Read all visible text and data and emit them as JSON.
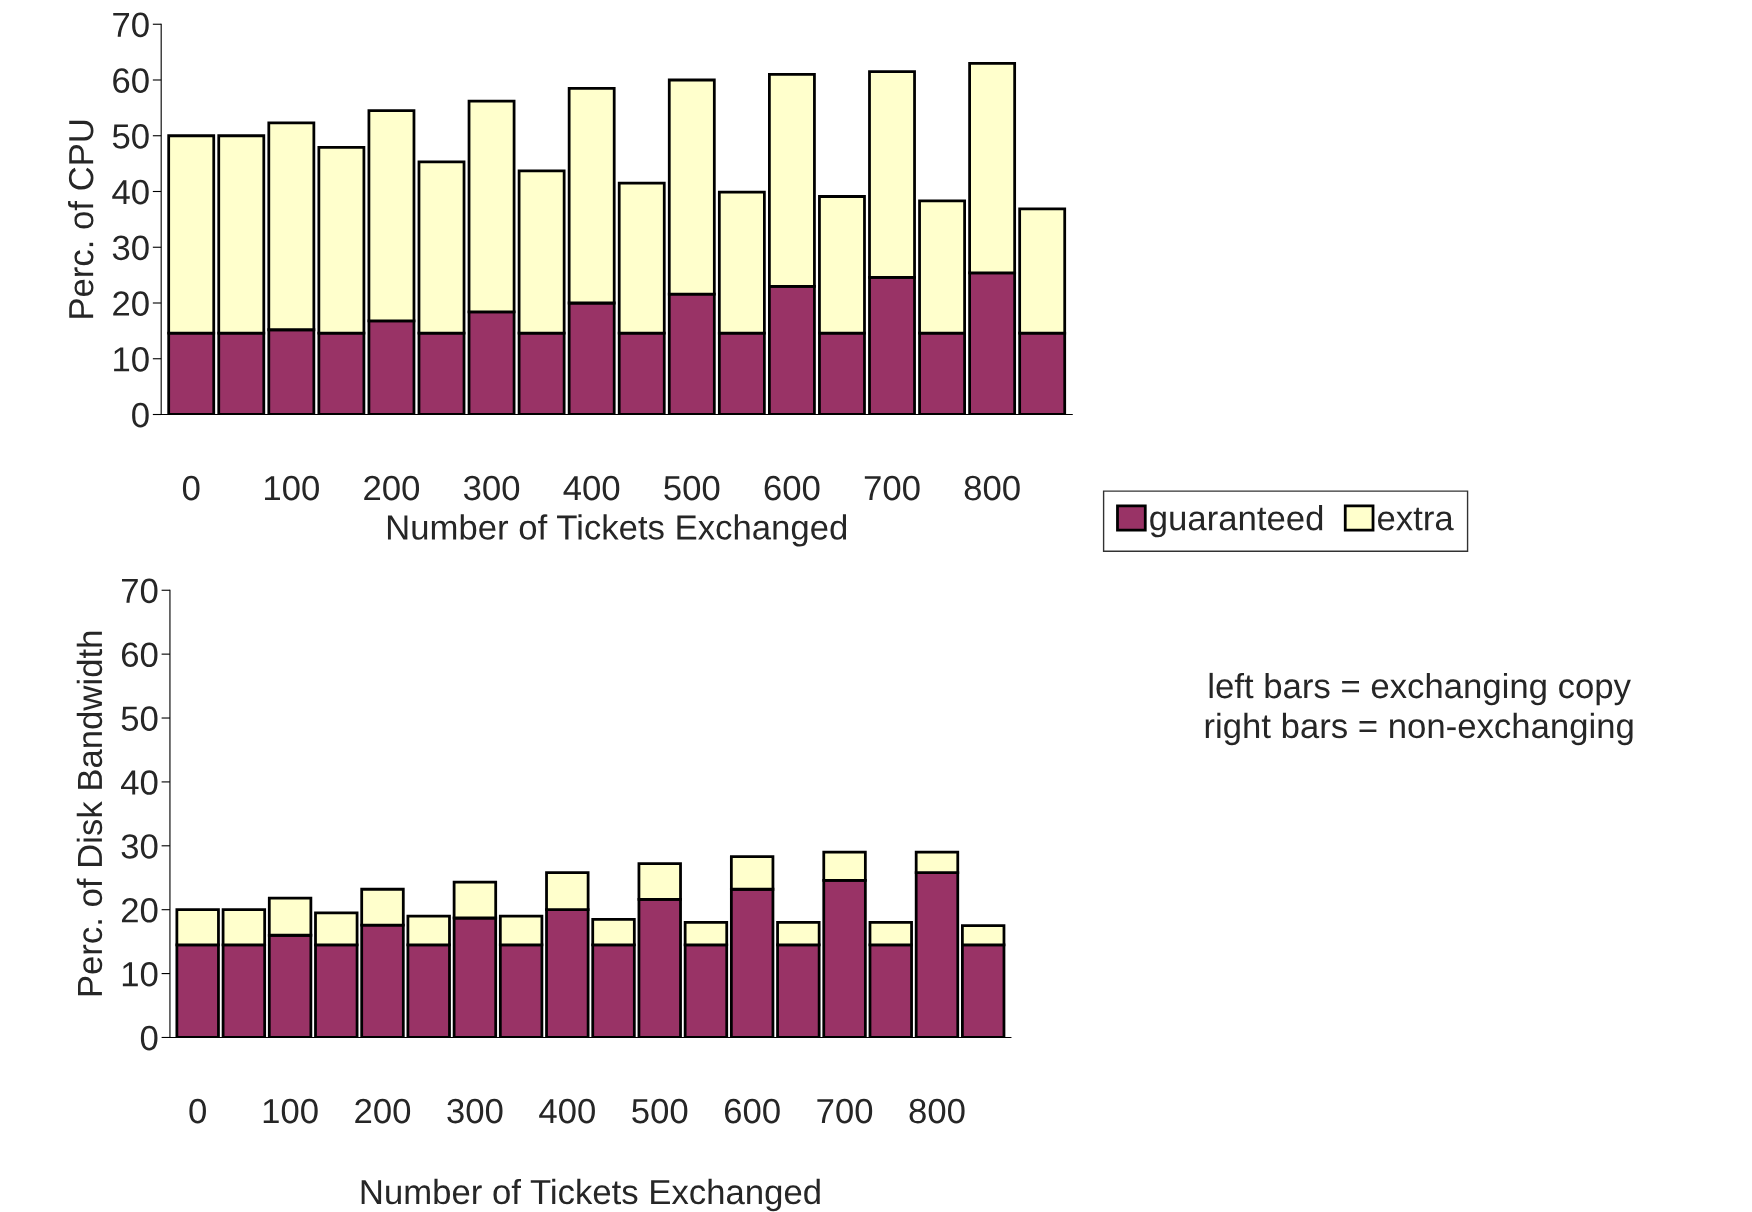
{
  "chart_data": [
    {
      "type": "bar",
      "stacked": true,
      "ylabel": "Perc. of CPU",
      "xlabel": "Number of Tickets Exchanged",
      "categories": [
        "0",
        null,
        "100",
        null,
        "200",
        null,
        "300",
        null,
        "400",
        null,
        "500",
        null,
        "600",
        null,
        "700",
        null,
        "800",
        null
      ],
      "ylim": [
        0,
        70
      ],
      "yticks": [
        0,
        10,
        20,
        30,
        40,
        50,
        60,
        70
      ],
      "legend": "right",
      "series": [
        {
          "name": "guaranteed",
          "color": "#993366",
          "values": [
            14.6,
            14.6,
            15.2,
            14.6,
            16.8,
            14.6,
            18.4,
            14.6,
            20,
            14.6,
            21.6,
            14.6,
            23,
            14.6,
            24.6,
            14.6,
            25.4,
            14.6
          ]
        },
        {
          "name": "extra",
          "color": "#ffffcc",
          "values": [
            35.4,
            35.4,
            37.1,
            33.3,
            37.7,
            30.7,
            37.8,
            29.1,
            38.5,
            26.9,
            38.4,
            25.3,
            38,
            24.5,
            36.9,
            23.7,
            37.6,
            22.3
          ]
        }
      ]
    },
    {
      "type": "bar",
      "stacked": true,
      "ylabel": "Perc. of Disk Bandwidth",
      "xlabel": "Number of Tickets Exchanged",
      "categories": [
        "0",
        null,
        "100",
        null,
        "200",
        null,
        "300",
        null,
        "400",
        null,
        "500",
        null,
        "600",
        null,
        "700",
        null,
        "800",
        null
      ],
      "ylim": [
        0,
        70
      ],
      "yticks": [
        0,
        10,
        20,
        30,
        40,
        50,
        60,
        70
      ],
      "annotations": [
        "left bars = exchanging copy\nright bars = non-exchanging"
      ],
      "series": [
        {
          "color": "#993366",
          "values": [
            14.5,
            14.5,
            16,
            14.5,
            17.6,
            14.5,
            18.7,
            14.5,
            20,
            14.5,
            21.6,
            14.5,
            23.2,
            14.5,
            24.6,
            14.5,
            25.8,
            14.5
          ]
        },
        {
          "color": "#ffffcc",
          "values": [
            5.5,
            5.5,
            5.8,
            5,
            5.6,
            4.5,
            5.6,
            4.5,
            5.8,
            4,
            5.6,
            3.5,
            5.1,
            3.5,
            4.4,
            3.5,
            3.2,
            3
          ]
        }
      ]
    }
  ]
}
